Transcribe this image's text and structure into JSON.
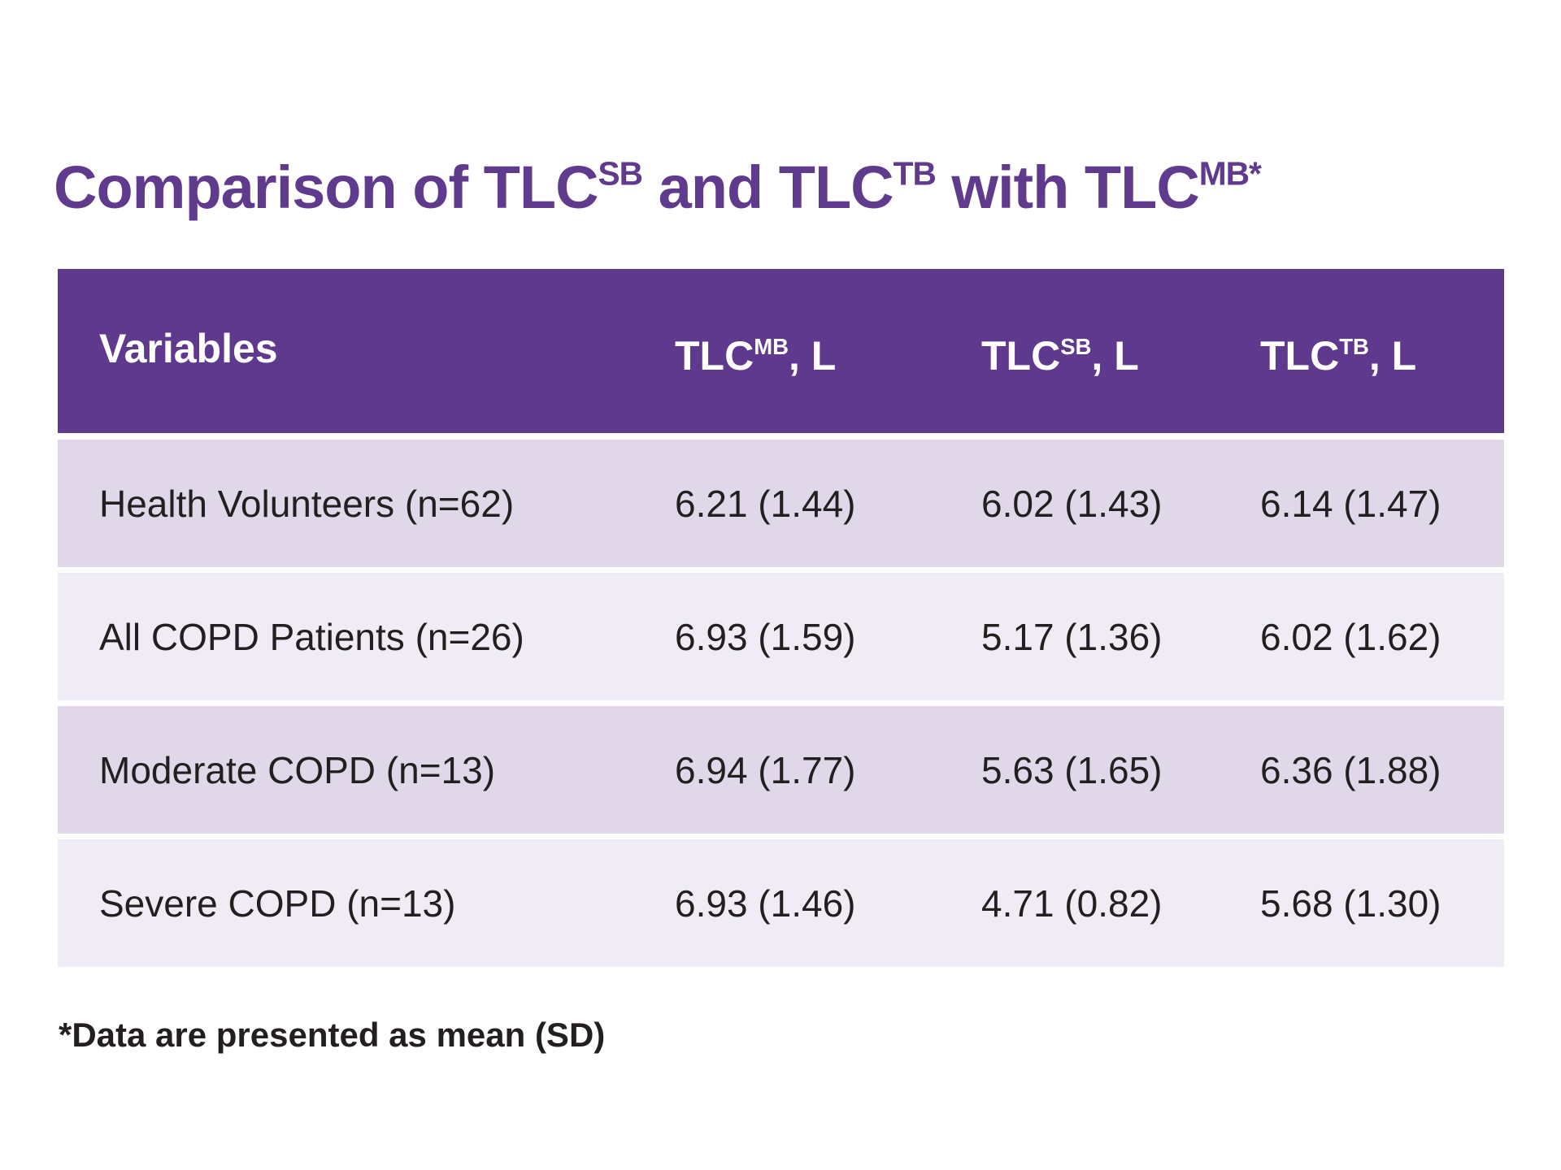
{
  "title": {
    "parts": [
      "Comparison of TLC",
      "SB",
      " and TLC",
      "TB",
      " with TLC",
      "MB*"
    ]
  },
  "table": {
    "header": [
      {
        "parts": [
          "Variables"
        ]
      },
      {
        "parts": [
          "TLC",
          "MB",
          ", L"
        ]
      },
      {
        "parts": [
          "TLC",
          "SB",
          ", L"
        ]
      },
      {
        "parts": [
          "TLC",
          "TB",
          ", L"
        ]
      }
    ],
    "rows": [
      [
        "Health Volunteers (n=62)",
        "6.21 (1.44)",
        "6.02 (1.43)",
        "6.14 (1.47)"
      ],
      [
        "All COPD Patients (n=26)",
        "6.93 (1.59)",
        "5.17 (1.36)",
        "6.02 (1.62)"
      ],
      [
        "Moderate COPD (n=13)",
        "6.94 (1.77)",
        "5.63 (1.65)",
        "6.36 (1.88)"
      ],
      [
        "Severe COPD (n=13)",
        "6.93 (1.46)",
        "4.71 (0.82)",
        "5.68 (1.30)"
      ]
    ]
  },
  "footnote": "*Data are presented as mean (SD)"
}
